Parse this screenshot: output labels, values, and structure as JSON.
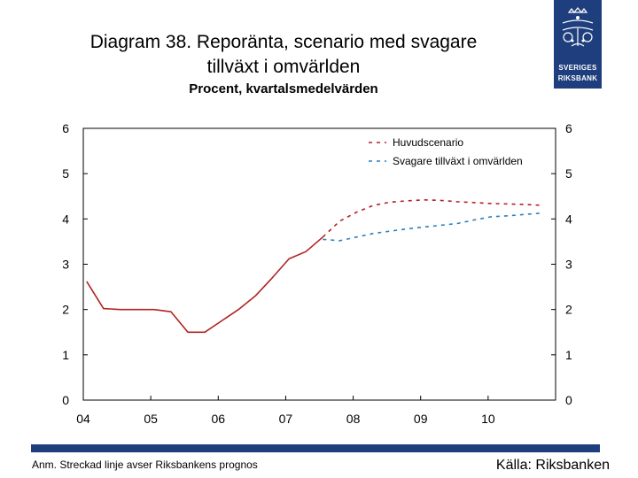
{
  "header": {
    "title_line1": "Diagram 38. Reporänta, scenario med svagare",
    "title_line2": "tillväxt i omvärlden",
    "subtitle": "Procent, kvartalsmedelvärden"
  },
  "logo": {
    "line1": "SVERIGES",
    "line2": "RIKSBANK",
    "icon": "riksbank-crest-icon"
  },
  "footer": {
    "note": "Anm. Streckad linje avser Riksbankens prognos",
    "source": "Källa: Riksbanken"
  },
  "colors": {
    "historical": "#b22222",
    "main_scenario": "#b22222",
    "weaker_growth": "#2b7fbf",
    "brand": "#1f3e7d"
  },
  "chart_data": {
    "type": "line",
    "title": "Diagram 38. Reporänta, scenario med svagare tillväxt i omvärlden",
    "subtitle": "Procent, kvartalsmedelvärden",
    "xlabel": "",
    "ylabel": "",
    "xlim": [
      2004.0,
      2011.0
    ],
    "ylim": [
      0,
      6
    ],
    "yticks": [
      0,
      1,
      2,
      3,
      4,
      5,
      6
    ],
    "xticks": [
      {
        "value": 2004.0,
        "label": "04"
      },
      {
        "value": 2005.0,
        "label": "05"
      },
      {
        "value": 2006.0,
        "label": "06"
      },
      {
        "value": 2007.0,
        "label": "07"
      },
      {
        "value": 2008.0,
        "label": "08"
      },
      {
        "value": 2009.0,
        "label": "09"
      },
      {
        "value": 2010.0,
        "label": "10"
      }
    ],
    "legend_position": "top-right",
    "series": [
      {
        "name": "Reporänta (utfall)",
        "style": "solid",
        "color": "#b22222",
        "in_legend": false,
        "x": [
          2004.05,
          2004.3,
          2004.55,
          2004.8,
          2005.05,
          2005.3,
          2005.55,
          2005.8,
          2006.05,
          2006.3,
          2006.55,
          2006.8,
          2007.05,
          2007.3,
          2007.55
        ],
        "y": [
          2.62,
          2.02,
          2.0,
          2.0,
          2.0,
          1.95,
          1.5,
          1.5,
          1.75,
          2.0,
          2.3,
          2.7,
          3.12,
          3.28,
          3.6
        ]
      },
      {
        "name": "Huvudscenario",
        "style": "dashed",
        "color": "#b22222",
        "in_legend": true,
        "x": [
          2007.55,
          2007.8,
          2008.05,
          2008.3,
          2008.55,
          2008.8,
          2009.05,
          2009.3,
          2009.55,
          2009.8,
          2010.05,
          2010.3,
          2010.55,
          2010.8
        ],
        "y": [
          3.6,
          3.95,
          4.15,
          4.3,
          4.37,
          4.4,
          4.42,
          4.41,
          4.38,
          4.36,
          4.34,
          4.33,
          4.32,
          4.3
        ]
      },
      {
        "name": "Svagare tillväxt i omvärlden",
        "style": "dashed",
        "color": "#2b7fbf",
        "in_legend": true,
        "x": [
          2007.55,
          2007.8,
          2008.05,
          2008.3,
          2008.55,
          2008.8,
          2009.05,
          2009.3,
          2009.55,
          2009.8,
          2010.05,
          2010.3,
          2010.55,
          2010.8
        ],
        "y": [
          3.55,
          3.52,
          3.6,
          3.68,
          3.73,
          3.78,
          3.82,
          3.86,
          3.9,
          3.98,
          4.05,
          4.07,
          4.1,
          4.13
        ]
      }
    ]
  }
}
